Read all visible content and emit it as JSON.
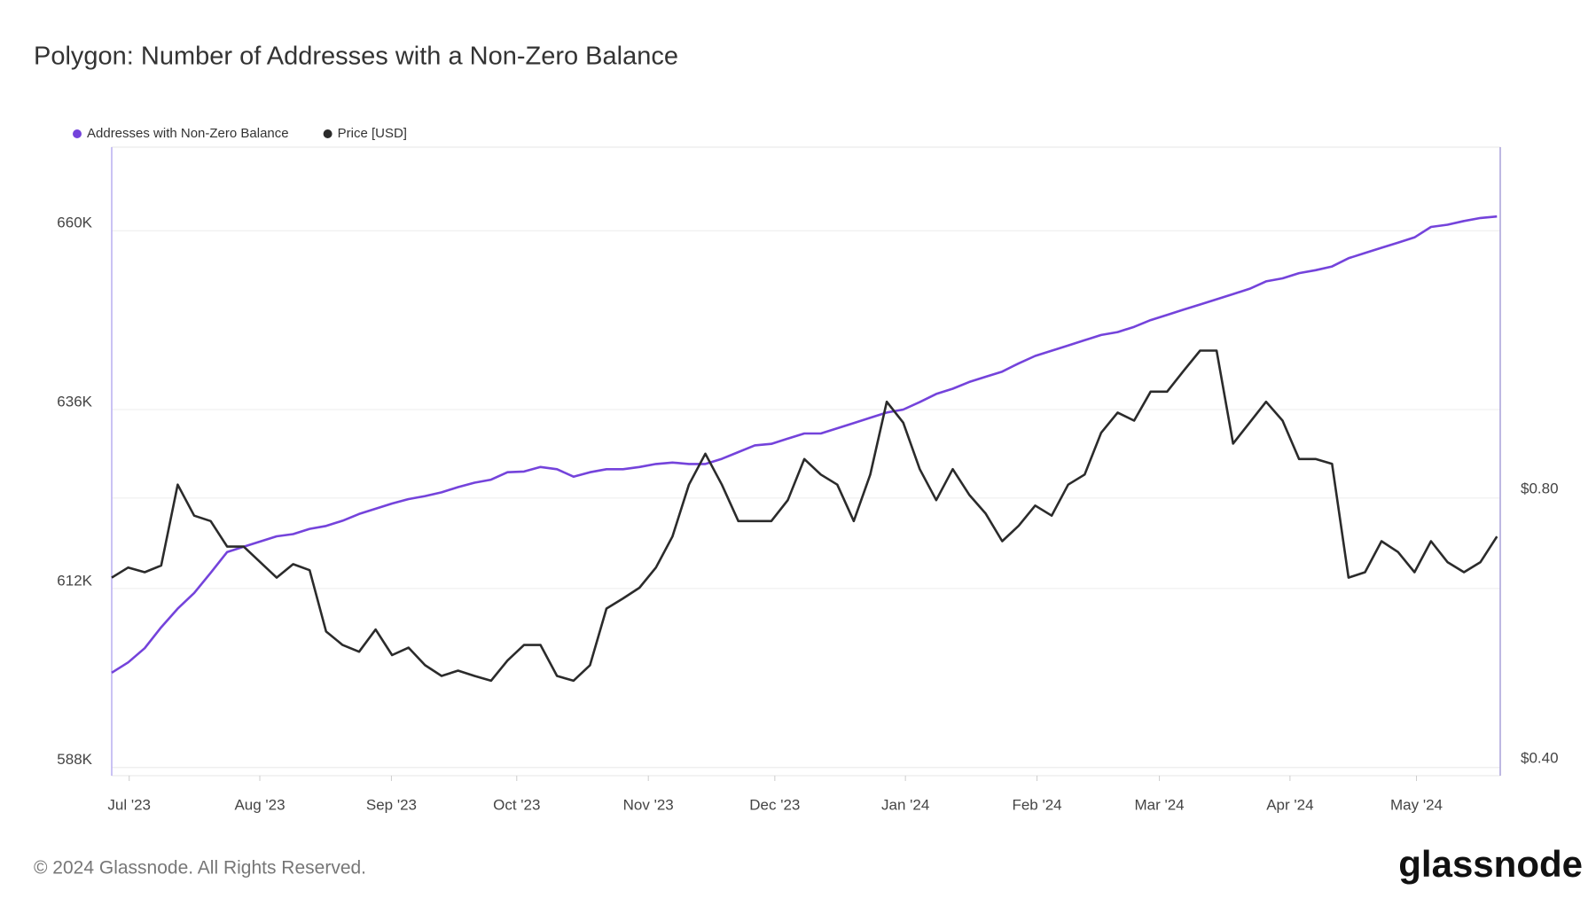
{
  "chart_data": {
    "type": "line",
    "title": "Polygon: Number of Addresses with a Non-Zero Balance",
    "footer": "© 2024 Glassnode. All Rights Reserved.",
    "brand": "glassnode",
    "xlim": [
      0,
      84.2
    ],
    "xticks": [
      {
        "value": 1.06,
        "label": "Jul '23"
      },
      {
        "value": 8.98,
        "label": "Aug '23"
      },
      {
        "value": 16.96,
        "label": "Sep '23"
      },
      {
        "value": 24.56,
        "label": "Oct '23"
      },
      {
        "value": 32.54,
        "label": "Nov '23"
      },
      {
        "value": 40.21,
        "label": "Dec '23"
      },
      {
        "value": 48.13,
        "label": "Jan '24"
      },
      {
        "value": 56.11,
        "label": "Feb '24"
      },
      {
        "value": 63.53,
        "label": "Mar '24"
      },
      {
        "value": 71.45,
        "label": "Apr '24"
      },
      {
        "value": 79.12,
        "label": "May '24"
      }
    ],
    "ylim": [
      586900,
      671200
    ],
    "yticks": [
      {
        "value": 588000,
        "label": "588K"
      },
      {
        "value": 612000,
        "label": "612K"
      },
      {
        "value": 636000,
        "label": "636K"
      },
      {
        "value": 660000,
        "label": "660K"
      }
    ],
    "y2lim": [
      0.388,
      1.321
    ],
    "y2ticks": [
      {
        "value": 0.4,
        "label": "$0.40"
      },
      {
        "value": 0.8,
        "label": "$0.80"
      }
    ],
    "grid": true,
    "legend": "top-left",
    "series": [
      {
        "name": "Addresses with Non-Zero Balance",
        "color": "#7443db",
        "axis": "y",
        "values": [
          600700,
          602100,
          604000,
          606800,
          609300,
          611400,
          614100,
          616900,
          617600,
          618300,
          619000,
          619300,
          620000,
          620400,
          621100,
          622000,
          622700,
          623400,
          624000,
          624400,
          624900,
          625600,
          626200,
          626600,
          627600,
          627700,
          628300,
          628000,
          627000,
          627600,
          628000,
          628000,
          628300,
          628700,
          628900,
          628700,
          628700,
          629400,
          630300,
          631200,
          631400,
          632100,
          632800,
          632800,
          633500,
          634200,
          634900,
          635600,
          636000,
          637000,
          638100,
          638800,
          639700,
          640400,
          641100,
          642200,
          643200,
          643900,
          644600,
          645300,
          646000,
          646400,
          647100,
          648000,
          648700,
          649400,
          650100,
          650800,
          651500,
          652200,
          653200,
          653600,
          654300,
          654700,
          655200,
          656300,
          657000,
          657700,
          658400,
          659100,
          660500,
          660800,
          661300,
          661700,
          661900
        ]
      },
      {
        "name": "Price [USD]",
        "color": "#2b2b2b",
        "axis": "y2",
        "values": [
          0.682,
          0.697,
          0.69,
          0.7,
          0.82,
          0.774,
          0.766,
          0.728,
          0.728,
          0.705,
          0.682,
          0.702,
          0.693,
          0.602,
          0.582,
          0.572,
          0.605,
          0.567,
          0.578,
          0.552,
          0.536,
          0.544,
          0.536,
          0.529,
          0.559,
          0.582,
          0.582,
          0.536,
          0.529,
          0.552,
          0.636,
          0.651,
          0.667,
          0.697,
          0.743,
          0.82,
          0.866,
          0.82,
          0.766,
          0.766,
          0.766,
          0.797,
          0.858,
          0.835,
          0.82,
          0.766,
          0.835,
          0.943,
          0.912,
          0.843,
          0.797,
          0.843,
          0.805,
          0.777,
          0.736,
          0.759,
          0.789,
          0.774,
          0.82,
          0.835,
          0.897,
          0.927,
          0.915,
          0.958,
          0.958,
          0.989,
          1.019,
          1.019,
          0.881,
          0.912,
          0.943,
          0.915,
          0.858,
          0.858,
          0.851,
          0.682,
          0.69,
          0.736,
          0.72,
          0.69,
          0.736,
          0.705,
          0.69,
          0.705,
          0.743
        ]
      }
    ]
  }
}
